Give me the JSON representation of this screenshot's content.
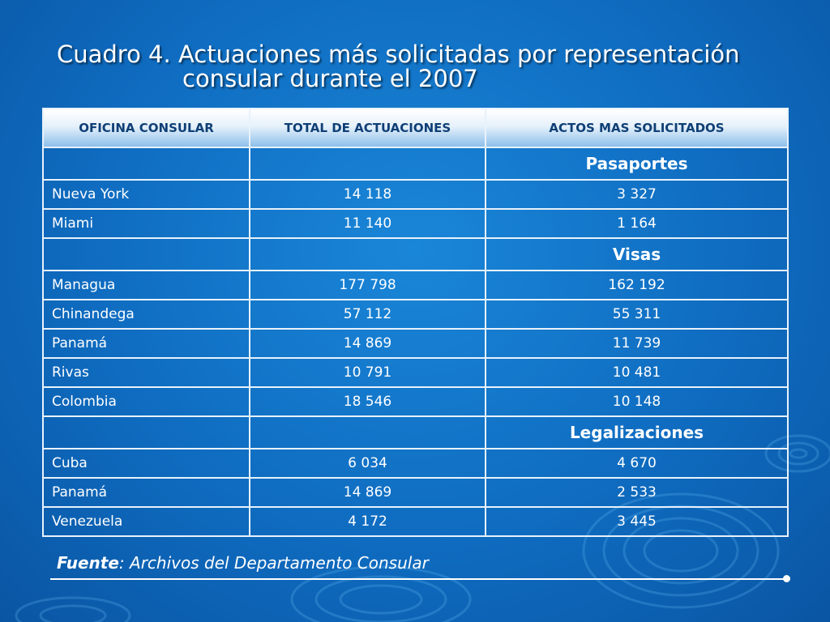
{
  "title": {
    "line1": "Cuadro 4. Actuaciones más solicitadas por representación",
    "line2": "consular durante el 2007"
  },
  "table": {
    "headers": [
      "OFICINA CONSULAR",
      "TOTAL DE ACTUACIONES",
      "ACTOS MAS SOLICITADOS"
    ],
    "groups": [
      {
        "label": "Pasaportes",
        "rows": [
          {
            "office": "Nueva York",
            "total": "14 118",
            "acts": "3 327"
          },
          {
            "office": "Miami",
            "total": "11 140",
            "acts": "1 164"
          }
        ]
      },
      {
        "label": "Visas",
        "rows": [
          {
            "office": "Managua",
            "total": "177 798",
            "acts": "162 192"
          },
          {
            "office": "Chinandega",
            "total": "57 112",
            "acts": "55 311"
          },
          {
            "office": "Panamá",
            "total": "14 869",
            "acts": "11 739"
          },
          {
            "office": "Rivas",
            "total": "10 791",
            "acts": "10 481"
          },
          {
            "office": "Colombia",
            "total": "18 546",
            "acts": "10 148"
          }
        ]
      },
      {
        "label": "Legalizaciones",
        "rows": [
          {
            "office": "Cuba",
            "total": "6 034",
            "acts": "4 670"
          },
          {
            "office": "Panamá",
            "total": "14 869",
            "acts": "2 533"
          },
          {
            "office": "Venezuela",
            "total": "4 172",
            "acts": "3 445"
          }
        ]
      }
    ]
  },
  "source": {
    "label": "Fuente",
    "separator": ": ",
    "text": "Archivos del Departamento Consular"
  },
  "colors": {
    "background": "#1278cc",
    "header_text": "#0f3f75",
    "grid": "#e8f2fb"
  }
}
